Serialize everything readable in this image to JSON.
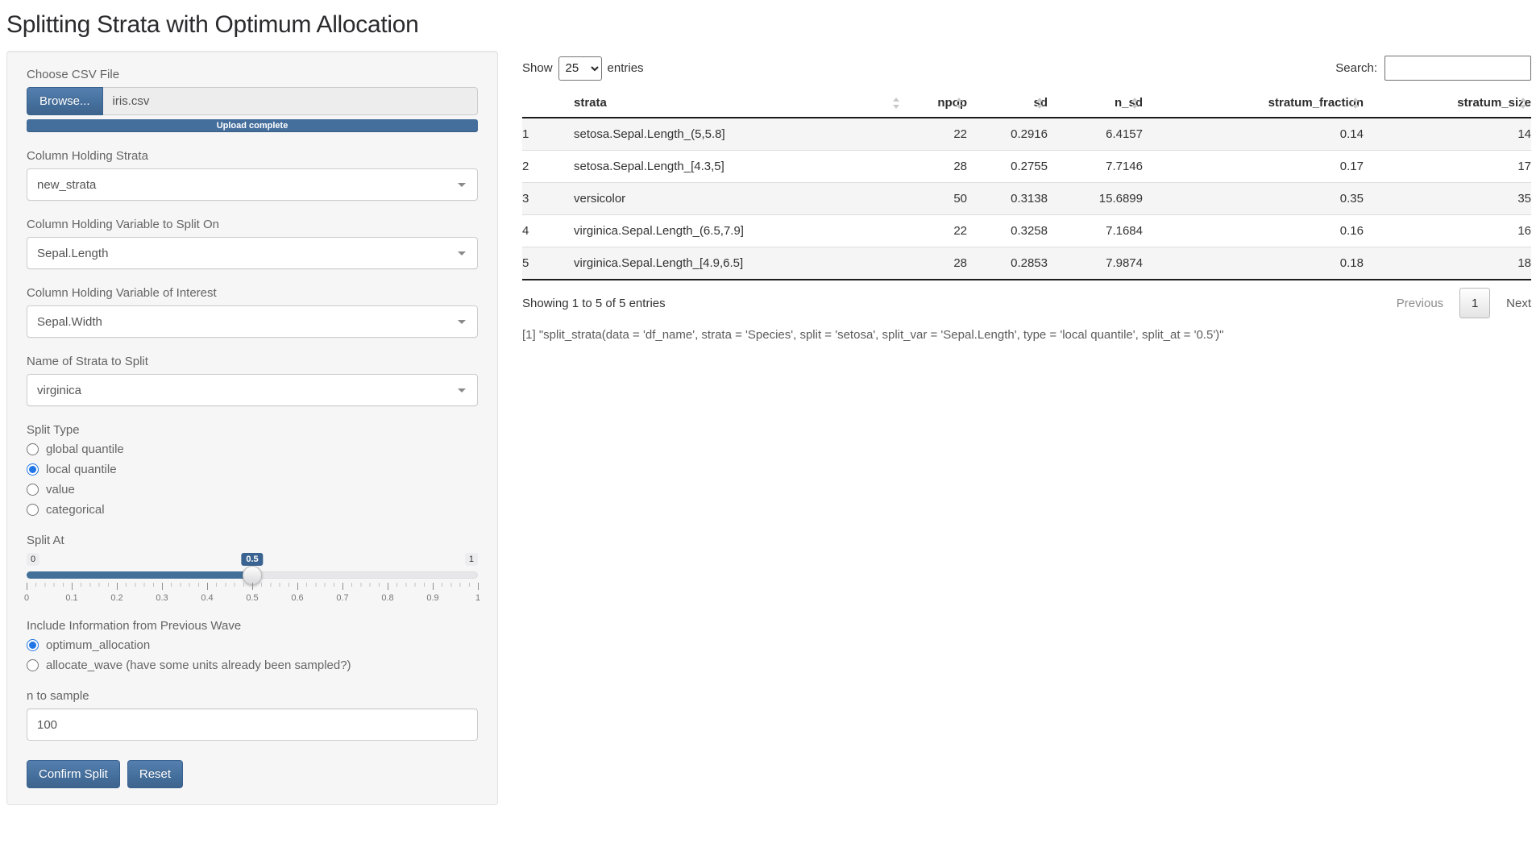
{
  "title": "Splitting Strata with Optimum Allocation",
  "colors": {
    "primary": "#446e9b",
    "primary_dark": "#3a6391",
    "radio_accent": "#2176e6",
    "slider_fill": "#437099"
  },
  "sidebar": {
    "file_input": {
      "label": "Choose CSV File",
      "browse_label": "Browse...",
      "filename": "iris.csv",
      "progress_text": "Upload complete"
    },
    "strata_select": {
      "label": "Column Holding Strata",
      "value": "new_strata"
    },
    "split_var_select": {
      "label": "Column Holding Variable to Split On",
      "value": "Sepal.Length"
    },
    "interest_select": {
      "label": "Column Holding Variable of Interest",
      "value": "Sepal.Width"
    },
    "strata_to_split_select": {
      "label": "Name of Strata to Split",
      "value": "virginica"
    },
    "split_type": {
      "label": "Split Type",
      "options": [
        "global quantile",
        "local quantile",
        "value",
        "categorical"
      ],
      "selected": "local quantile"
    },
    "split_at": {
      "label": "Split At",
      "min_label": "0",
      "max_label": "1",
      "value_label": "0.5",
      "value": 0.5,
      "tick_labels": [
        "0",
        "0.1",
        "0.2",
        "0.3",
        "0.4",
        "0.5",
        "0.6",
        "0.7",
        "0.8",
        "0.9",
        "1"
      ]
    },
    "previous_wave": {
      "label": "Include Information from Previous Wave",
      "options": [
        "optimum_allocation",
        "allocate_wave (have some units already been sampled?)"
      ],
      "selected": "optimum_allocation"
    },
    "n_to_sample": {
      "label": "n to sample",
      "value": "100"
    },
    "confirm_label": "Confirm Split",
    "reset_label": "Reset"
  },
  "table_controls": {
    "show_label": "Show",
    "page_length": "25",
    "entries_label": "entries",
    "search_label": "Search:",
    "search_value": ""
  },
  "table": {
    "columns": [
      "strata",
      "npop",
      "sd",
      "n_sd",
      "stratum_fraction",
      "stratum_size"
    ],
    "rows": [
      {
        "index": "1",
        "strata": "setosa.Sepal.Length_(5,5.8]",
        "npop": "22",
        "sd": "0.2916",
        "n_sd": "6.4157",
        "stratum_fraction": "0.14",
        "stratum_size": "14"
      },
      {
        "index": "2",
        "strata": "setosa.Sepal.Length_[4.3,5]",
        "npop": "28",
        "sd": "0.2755",
        "n_sd": "7.7146",
        "stratum_fraction": "0.17",
        "stratum_size": "17"
      },
      {
        "index": "3",
        "strata": "versicolor",
        "npop": "50",
        "sd": "0.3138",
        "n_sd": "15.6899",
        "stratum_fraction": "0.35",
        "stratum_size": "35"
      },
      {
        "index": "4",
        "strata": "virginica.Sepal.Length_(6.5,7.9]",
        "npop": "22",
        "sd": "0.3258",
        "n_sd": "7.1684",
        "stratum_fraction": "0.16",
        "stratum_size": "16"
      },
      {
        "index": "5",
        "strata": "virginica.Sepal.Length_[4.9,6.5]",
        "npop": "28",
        "sd": "0.2853",
        "n_sd": "7.9874",
        "stratum_fraction": "0.18",
        "stratum_size": "18"
      }
    ]
  },
  "table_footer": {
    "info": "Showing 1 to 5 of 5 entries",
    "previous": "Previous",
    "page": "1",
    "next": "Next"
  },
  "console_output": "[1] \"split_strata(data = 'df_name', strata = 'Species', split = 'setosa', split_var = 'Sepal.Length', type = 'local quantile', split_at = '0.5')\""
}
